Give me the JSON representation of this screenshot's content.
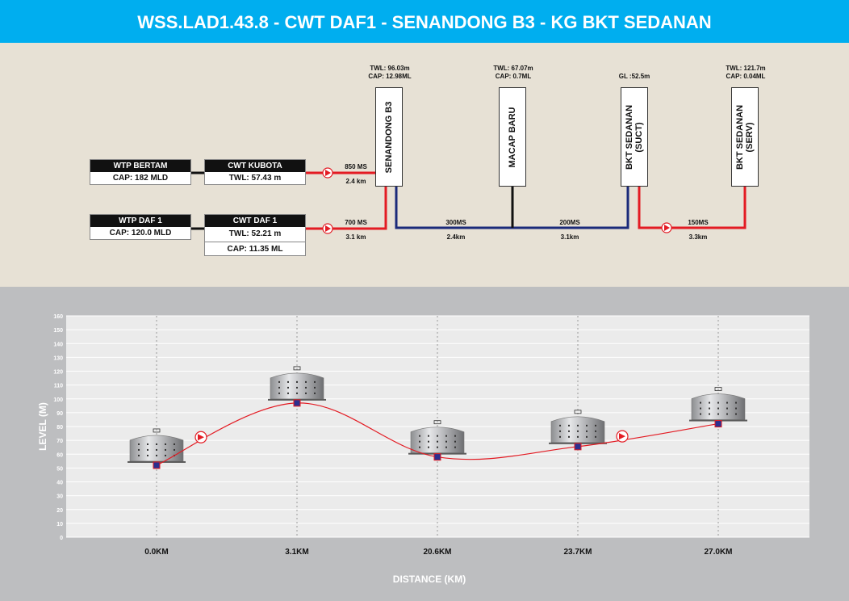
{
  "header": {
    "title": "WSS.LAD1.43.8 - CWT DAF1 - SENANDONG B3 - KG BKT SEDANAN"
  },
  "schematic": {
    "wtp_bertam": {
      "name": "WTP BERTAM",
      "cap": "CAP: 182 MLD"
    },
    "cwt_kubota": {
      "name": "CWT KUBOTA",
      "twl": "TWL: 57.43 m"
    },
    "wtp_daf1": {
      "name": "WTP DAF 1",
      "cap": "CAP: 120.0 MLD"
    },
    "cwt_daf1": {
      "name": "CWT DAF 1",
      "twl": "TWL: 52.21 m",
      "cap": "CAP: 11.35 ML"
    },
    "senandong": {
      "name": "SENANDONG B3",
      "twl": "TWL: 96.03m",
      "cap": "CAP: 12.98ML"
    },
    "macap": {
      "name": "MACAP BARU",
      "twl": "TWL: 67.07m",
      "cap": "CAP: 0.7ML"
    },
    "bkt_suct": {
      "name1": "BKT SEDANAN",
      "name2": "(SUCT)",
      "gl": "GL :52.5m"
    },
    "bkt_serv": {
      "name1": "BKT SEDANAN",
      "name2": "(SERV)",
      "twl": "TWL: 121.7m",
      "cap": "CAP: 0.04ML"
    },
    "pipes": {
      "p1": {
        "size": "850 MS",
        "len": "2.4 km"
      },
      "p2": {
        "size": "700 MS",
        "len": "3.1 km"
      },
      "p3": {
        "size": "300MS",
        "len": "2.4km"
      },
      "p4": {
        "size": "200MS",
        "len": "3.1km"
      },
      "p5": {
        "size": "150MS",
        "len": "3.3km"
      }
    },
    "colors": {
      "pumped": "#e31b23",
      "gravity": "#1b2a7a",
      "branch": "#111111"
    }
  },
  "profile": {
    "ylabel": "LEVEL (M)",
    "xlabel": "DISTANCE (KM)",
    "ylim": [
      0,
      160
    ],
    "yticks": [
      0,
      10,
      20,
      30,
      40,
      50,
      60,
      70,
      80,
      90,
      100,
      110,
      120,
      130,
      140,
      150,
      160
    ],
    "xticks": [
      "0.0KM",
      "3.1KM",
      "20.6KM",
      "23.7KM",
      "27.0KM"
    ]
  },
  "chart_data": {
    "type": "line",
    "x": [
      "0.0KM",
      "3.1KM",
      "20.6KM",
      "23.7KM",
      "27.0KM"
    ],
    "values": [
      52,
      97,
      58,
      65.5,
      82
    ],
    "ylim": [
      0,
      160
    ],
    "xlabel": "DISTANCE (KM)",
    "ylabel": "LEVEL (M)",
    "grid": true,
    "pumps_after_index": [
      0,
      3
    ],
    "line_color": "#e31b23",
    "marker_color": "#2b2f8f"
  }
}
